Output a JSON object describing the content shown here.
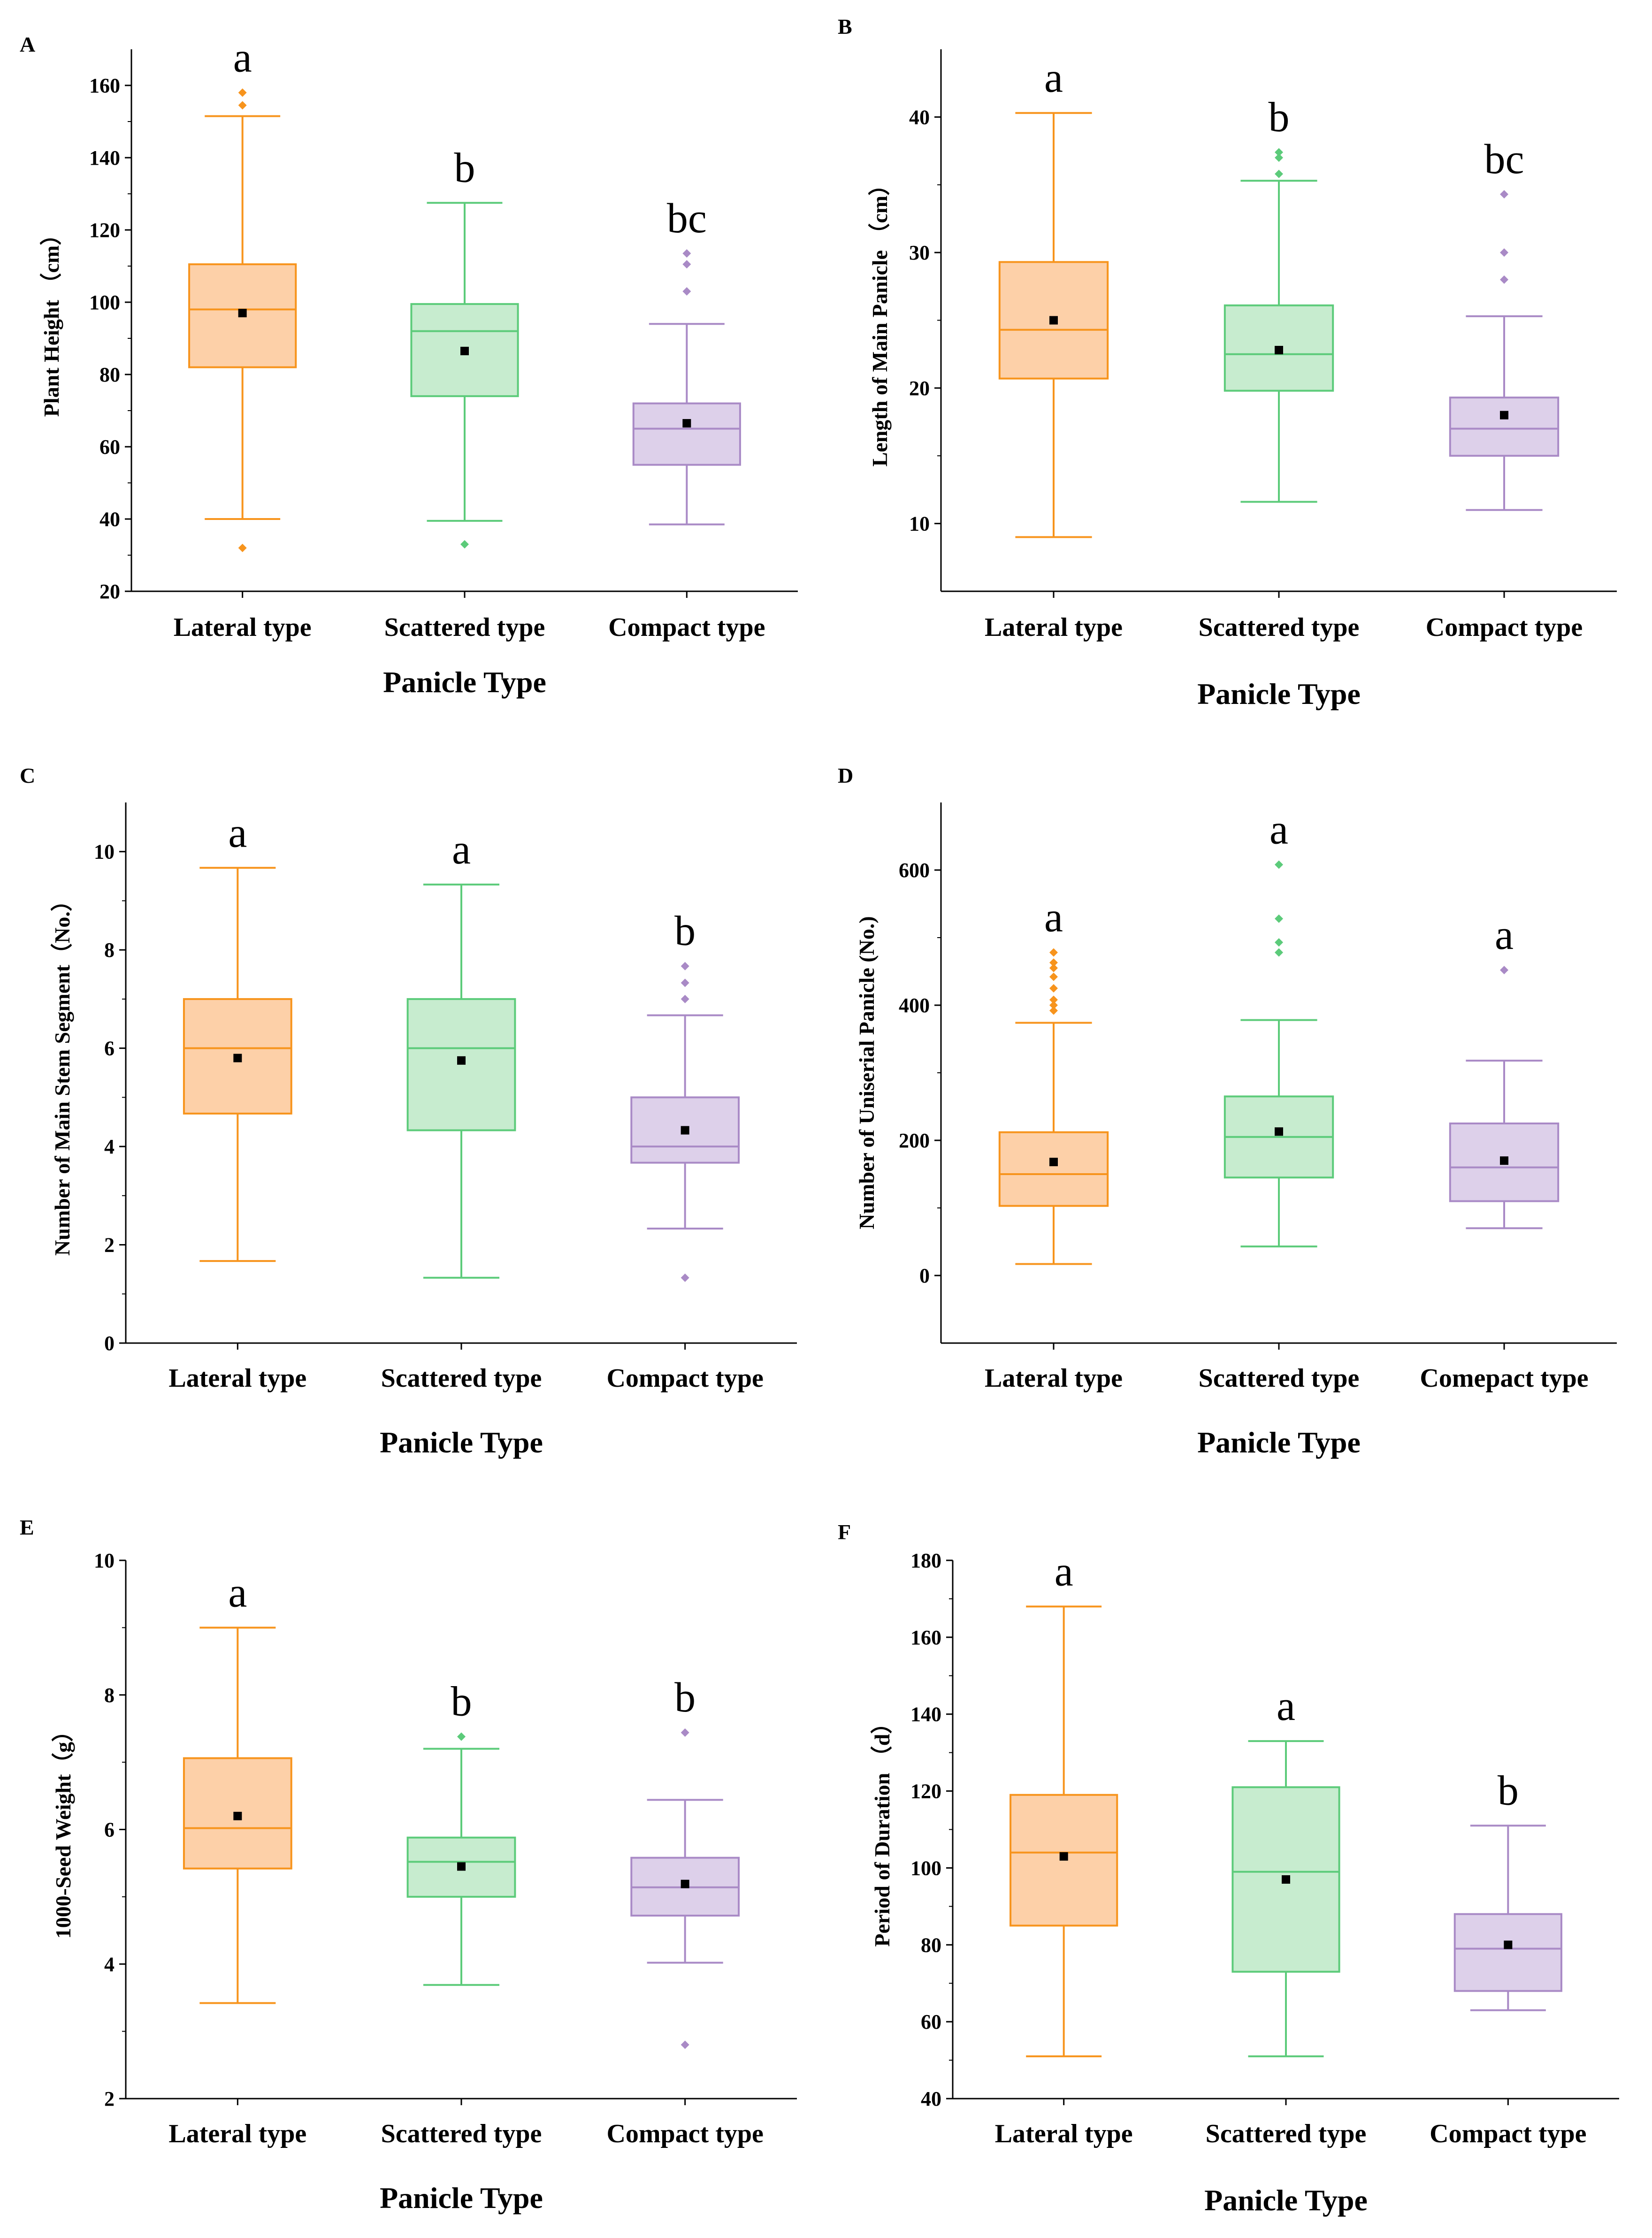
{
  "colors": {
    "lateral": {
      "stroke": "#f7941d",
      "fill": "#fdd0a8"
    },
    "scattered": {
      "stroke": "#5ccb7a",
      "fill": "#c7eccf"
    },
    "compact": {
      "stroke": "#a98ac6",
      "fill": "#ddd0ea"
    },
    "axis": "#000000",
    "mean": "#000000"
  },
  "chart_data": [
    {
      "type": "box",
      "panel": "A",
      "ylabel": "Plant Height （cm）",
      "xlabel": "Panicle Type",
      "ylim": [
        20,
        170
      ],
      "yticks": [
        20,
        40,
        60,
        80,
        100,
        120,
        140,
        160
      ],
      "categories": [
        "Lateral type",
        "Scattered type",
        "Compact type"
      ],
      "boxes": [
        {
          "min": 40,
          "q1": 82,
          "median": 98,
          "q3": 110.5,
          "max": 151.5,
          "mean": 97,
          "outliers": [
            32,
            154.5,
            158
          ],
          "letter": "a"
        },
        {
          "min": 39.5,
          "q1": 74,
          "median": 92,
          "q3": 99.5,
          "max": 127.5,
          "mean": 86.5,
          "outliers": [
            33
          ],
          "letter": "b"
        },
        {
          "min": 38.5,
          "q1": 55,
          "median": 65,
          "q3": 72,
          "max": 94,
          "mean": 66.5,
          "outliers": [
            103,
            110.5,
            113.5
          ],
          "letter": "bc"
        }
      ]
    },
    {
      "type": "box",
      "panel": "B",
      "ylabel": "Length of Main Panicle （cm）",
      "xlabel": "Panicle Type",
      "ylim": [
        5,
        45
      ],
      "yticks": [
        10,
        20,
        30,
        40
      ],
      "categories": [
        "Lateral type",
        "Scattered type",
        "Compact type"
      ],
      "boxes": [
        {
          "min": 9,
          "q1": 20.7,
          "median": 24.3,
          "q3": 29.3,
          "max": 40.3,
          "mean": 25,
          "outliers": [],
          "letter": "a"
        },
        {
          "min": 11.6,
          "q1": 19.8,
          "median": 22.5,
          "q3": 26.1,
          "max": 35.3,
          "mean": 22.8,
          "outliers": [
            35.8,
            37,
            37.4
          ],
          "letter": "b"
        },
        {
          "min": 11,
          "q1": 15,
          "median": 17,
          "q3": 19.3,
          "max": 25.3,
          "mean": 18,
          "outliers": [
            28,
            30,
            34.3
          ],
          "letter": "bc"
        }
      ]
    },
    {
      "type": "box",
      "panel": "C",
      "ylabel": "Number of Main Stem Segment（No.）",
      "xlabel": "Panicle Type",
      "ylim": [
        0,
        11
      ],
      "yticks": [
        0,
        2,
        4,
        6,
        8,
        10
      ],
      "categories": [
        "Lateral type",
        "Scattered type",
        "Compact type"
      ],
      "boxes": [
        {
          "min": 1.67,
          "q1": 4.67,
          "median": 6,
          "q3": 7,
          "max": 9.67,
          "mean": 5.8,
          "outliers": [],
          "letter": "a"
        },
        {
          "min": 1.33,
          "q1": 4.33,
          "median": 6,
          "q3": 7,
          "max": 9.33,
          "mean": 5.75,
          "outliers": [],
          "letter": "a"
        },
        {
          "min": 2.33,
          "q1": 3.67,
          "median": 4,
          "q3": 5,
          "max": 6.67,
          "mean": 4.33,
          "outliers": [
            1.33,
            7,
            7.33,
            7.67
          ],
          "letter": "b"
        }
      ]
    },
    {
      "type": "box",
      "panel": "D",
      "ylabel": "Number of Uniserial Panicle (No.)",
      "xlabel": "Panicle Type",
      "ylim": [
        -100,
        700
      ],
      "yticks": [
        0,
        200,
        400,
        600
      ],
      "categories": [
        "Lateral type",
        "Scattered type",
        "Comepact type"
      ],
      "boxes": [
        {
          "min": 17,
          "q1": 103,
          "median": 150,
          "q3": 212,
          "max": 374,
          "mean": 168,
          "outliers": [
            392,
            400,
            408,
            425,
            442,
            455,
            463,
            478
          ],
          "letter": "a"
        },
        {
          "min": 43,
          "q1": 145,
          "median": 205,
          "q3": 265,
          "max": 378,
          "mean": 213,
          "outliers": [
            478,
            493,
            528,
            608
          ],
          "letter": "a"
        },
        {
          "min": 70,
          "q1": 110,
          "median": 160,
          "q3": 225,
          "max": 318,
          "mean": 170,
          "outliers": [
            452
          ],
          "letter": "a"
        }
      ]
    },
    {
      "type": "box",
      "panel": "E",
      "ylabel": "1000-Seed Weight（g）",
      "xlabel": "Panicle Type",
      "ylim": [
        2,
        10
      ],
      "yticks": [
        2,
        4,
        6,
        8,
        10
      ],
      "categories": [
        "Lateral type",
        "Scattered type",
        "Compact type"
      ],
      "boxes": [
        {
          "min": 3.42,
          "q1": 5.42,
          "median": 6.02,
          "q3": 7.06,
          "max": 9,
          "mean": 6.2,
          "outliers": [],
          "letter": "a"
        },
        {
          "min": 3.69,
          "q1": 5,
          "median": 5.52,
          "q3": 5.88,
          "max": 7.2,
          "mean": 5.45,
          "outliers": [
            7.38
          ],
          "letter": "b"
        },
        {
          "min": 4.02,
          "q1": 4.72,
          "median": 5.14,
          "q3": 5.58,
          "max": 6.44,
          "mean": 5.19,
          "outliers": [
            2.8,
            7.44
          ],
          "letter": "b"
        }
      ]
    },
    {
      "type": "box",
      "panel": "F",
      "ylabel": "Period of Duration （d）",
      "xlabel": "Panicle Type",
      "ylim": [
        40,
        180
      ],
      "yticks": [
        40,
        60,
        80,
        100,
        120,
        140,
        160,
        180
      ],
      "categories": [
        "Lateral type",
        "Scattered type",
        "Compact type"
      ],
      "boxes": [
        {
          "min": 51,
          "q1": 85,
          "median": 104,
          "q3": 119,
          "max": 168,
          "mean": 103,
          "outliers": [],
          "letter": "a"
        },
        {
          "min": 51,
          "q1": 73,
          "median": 99,
          "q3": 121,
          "max": 133,
          "mean": 97,
          "outliers": [],
          "letter": "a"
        },
        {
          "min": 63,
          "q1": 68,
          "median": 79,
          "q3": 88,
          "max": 111,
          "mean": 80,
          "outliers": [],
          "letter": "b"
        }
      ]
    }
  ]
}
